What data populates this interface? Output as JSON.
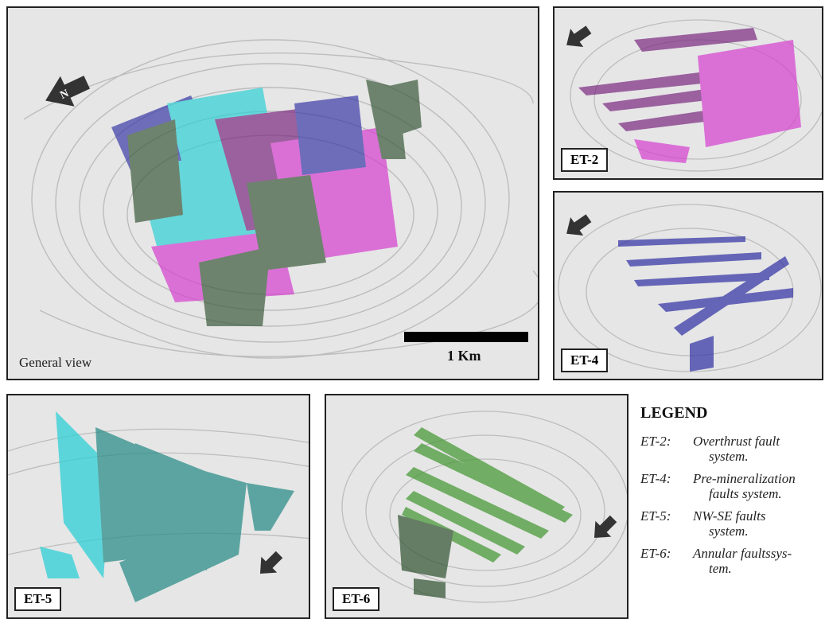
{
  "panels": {
    "general": {
      "caption": "General view",
      "scale_label": "1 Km"
    },
    "et2": {
      "tag": "ET-2"
    },
    "et4": {
      "tag": "ET-4"
    },
    "et5": {
      "tag": "ET-5"
    },
    "et6": {
      "tag": "ET-6"
    }
  },
  "north_arrows": {
    "letter": "N",
    "icon": "north-arrow-icon"
  },
  "legend": {
    "title": "LEGEND",
    "items": [
      {
        "code": "ET-2:",
        "desc1": "Overthrust fault",
        "desc2": "system."
      },
      {
        "code": "ET-4:",
        "desc1": "Pre-mineralization",
        "desc2": "faults system."
      },
      {
        "code": "ET-5:",
        "desc1": "NW-SE faults",
        "desc2": "system."
      },
      {
        "code": "ET-6:",
        "desc1": "Annular faultssys-",
        "desc2": "tem."
      }
    ]
  },
  "colors": {
    "terrain": "#e6e6e6",
    "contour": "#bdbdbd",
    "magenta": "#d63fd0",
    "purple": "#7a2a80",
    "blue": "#3a3aa8",
    "cyan": "#2fd0d6",
    "darkgreen": "#3a5a3a",
    "teal": "#2f8f8a",
    "green": "#4a9a3a"
  }
}
